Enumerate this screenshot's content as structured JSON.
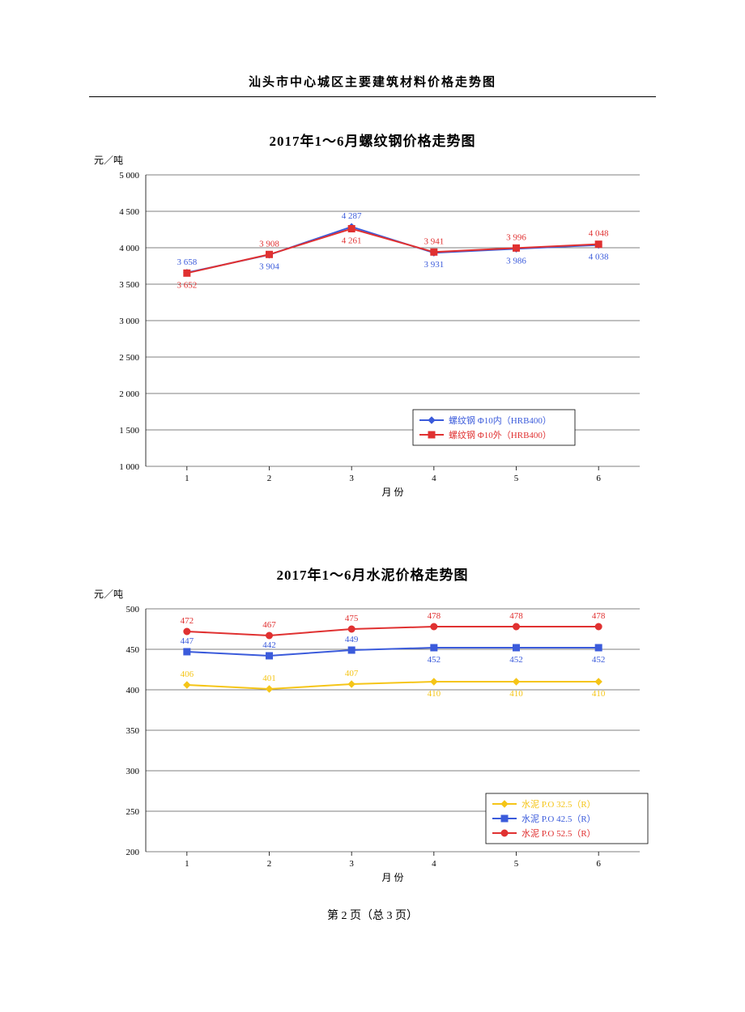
{
  "page_header": "汕头市中心城区主要建筑材料价格走势图",
  "footer": "第 2 页（总 3 页）",
  "chart1": {
    "type": "line",
    "title": "2017年1～6月螺纹钢价格走势图",
    "ylabel": "元／吨",
    "xlabel": "月  份",
    "categories": [
      "1",
      "2",
      "3",
      "4",
      "5",
      "6"
    ],
    "ylim": [
      1000,
      5000
    ],
    "ytick_step": 500,
    "yticks": [
      "1 000",
      "1 500",
      "2 000",
      "2 500",
      "3 000",
      "3 500",
      "4 000",
      "4 500",
      "5 000"
    ],
    "series": [
      {
        "name": "螺纹钢  Φ10内（HRB400）",
        "color": "#3b5bdb",
        "marker": "diamond",
        "values": [
          3658,
          3904,
          4287,
          3931,
          3986,
          4038
        ],
        "value_labels": [
          "3 658",
          "3 904",
          "4 287",
          "3 931",
          "3 986",
          "4 038"
        ],
        "label_pos": [
          "above",
          "below",
          "above",
          "below",
          "below",
          "below"
        ]
      },
      {
        "name": "螺纹钢  Φ10外（HRB400）",
        "color": "#e03131",
        "marker": "square",
        "values": [
          3652,
          3908,
          4261,
          3941,
          3996,
          4048
        ],
        "value_labels": [
          "3 652",
          "3 908",
          "4 261",
          "3 941",
          "3 996",
          "4 048"
        ],
        "label_pos": [
          "below",
          "above",
          "below",
          "above",
          "above",
          "above"
        ]
      }
    ],
    "background_color": "#ffffff",
    "grid_color": "#000000",
    "axis_color": "#000000",
    "legend_border": "#000000"
  },
  "chart2": {
    "type": "line",
    "title": "2017年1～6月水泥价格走势图",
    "ylabel": "元／吨",
    "xlabel": "月  份",
    "categories": [
      "1",
      "2",
      "3",
      "4",
      "5",
      "6"
    ],
    "ylim": [
      200,
      500
    ],
    "ytick_step": 50,
    "yticks": [
      "200",
      "250",
      "300",
      "350",
      "400",
      "450",
      "500"
    ],
    "series": [
      {
        "name": "水泥  P.O 32.5（R）",
        "color": "#f5c518",
        "marker": "diamond",
        "values": [
          406,
          401,
          407,
          410,
          410,
          410
        ],
        "value_labels": [
          "406",
          "401",
          "407",
          "410",
          "410",
          "410"
        ],
        "label_pos": [
          "above",
          "above",
          "above",
          "below",
          "below",
          "below"
        ]
      },
      {
        "name": "水泥  P.O 42.5（R）",
        "color": "#3b5bdb",
        "marker": "square",
        "values": [
          447,
          442,
          449,
          452,
          452,
          452
        ],
        "value_labels": [
          "447",
          "442",
          "449",
          "452",
          "452",
          "452"
        ],
        "label_pos": [
          "above",
          "above",
          "above",
          "below",
          "below",
          "below"
        ]
      },
      {
        "name": "水泥  P.O 52.5（R）",
        "color": "#e03131",
        "marker": "circle",
        "values": [
          472,
          467,
          475,
          478,
          478,
          478
        ],
        "value_labels": [
          "472",
          "467",
          "475",
          "478",
          "478",
          "478"
        ],
        "label_pos": [
          "above",
          "above",
          "above",
          "above",
          "above",
          "above"
        ]
      }
    ],
    "background_color": "#ffffff",
    "grid_color": "#000000",
    "axis_color": "#000000",
    "legend_border": "#000000"
  }
}
